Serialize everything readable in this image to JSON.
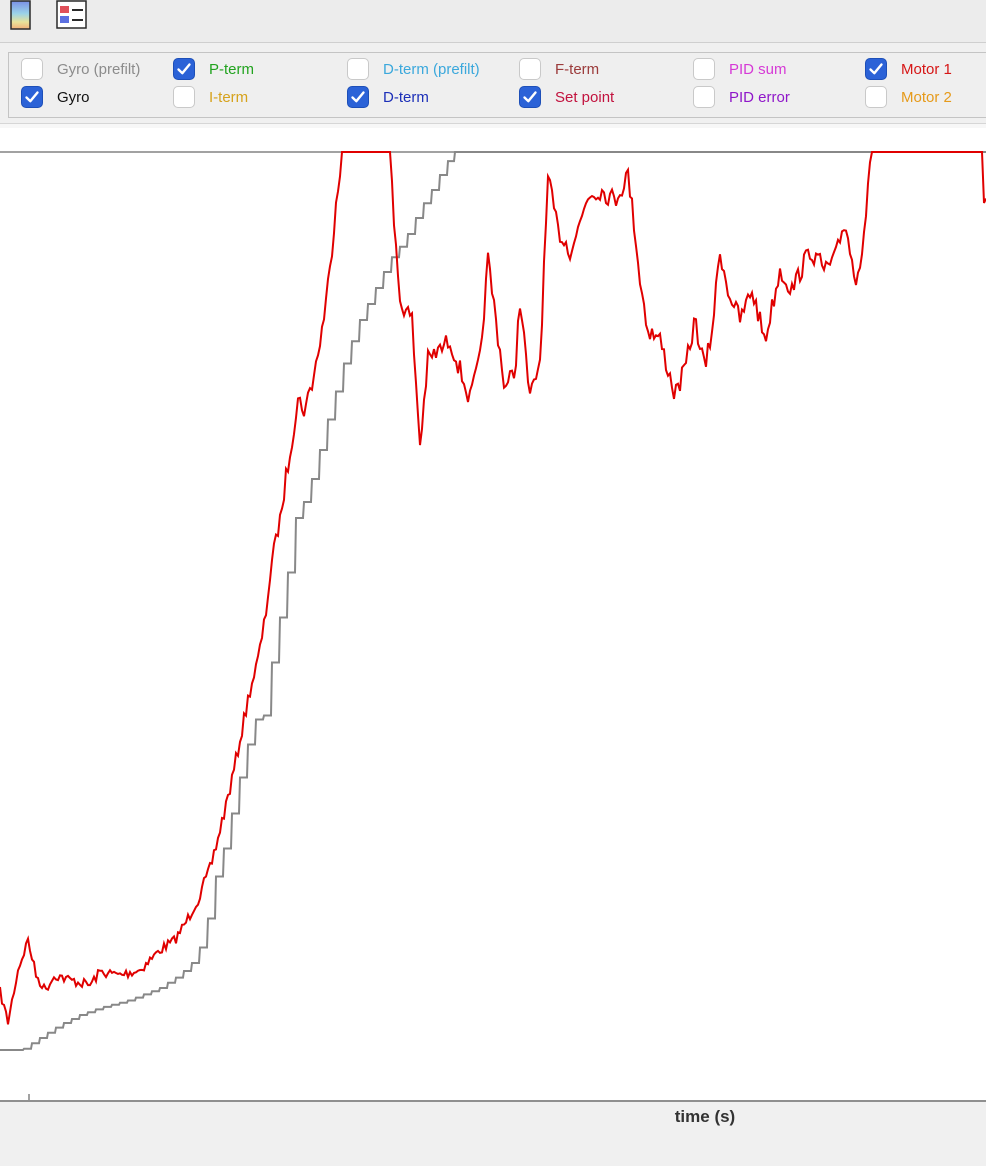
{
  "toolbar": {
    "buttons": [
      {
        "name": "color-map-button",
        "icon": "color-gradient-icon"
      },
      {
        "name": "legend-toggle-button",
        "icon": "legend-icon"
      }
    ]
  },
  "signals": [
    {
      "label": "Gyro (prefilt)",
      "checked": false,
      "color": "#8c8c8c"
    },
    {
      "label": "P-term",
      "checked": true,
      "color": "#22a31f"
    },
    {
      "label": "D-term (prefilt)",
      "checked": false,
      "color": "#3ba8dc"
    },
    {
      "label": "F-term",
      "checked": false,
      "color": "#9b3b3b"
    },
    {
      "label": "PID sum",
      "checked": false,
      "color": "#d63ad6"
    },
    {
      "label": "Motor 1",
      "checked": true,
      "color": "#d61616"
    },
    {
      "label": "Gyro",
      "checked": true,
      "color": "#111111"
    },
    {
      "label": "I-term",
      "checked": false,
      "color": "#d6a21c"
    },
    {
      "label": "D-term",
      "checked": true,
      "color": "#1c2fb8"
    },
    {
      "label": "Set point",
      "checked": true,
      "color": "#c2123e"
    },
    {
      "label": "PID error",
      "checked": false,
      "color": "#8f17c9"
    },
    {
      "label": "Motor 2",
      "checked": false,
      "color": "#e69a1a"
    }
  ],
  "plot": {
    "xlabel": "time (s)",
    "series_colors": {
      "motor1": "#e00000",
      "setpoint": "#888888"
    }
  }
}
